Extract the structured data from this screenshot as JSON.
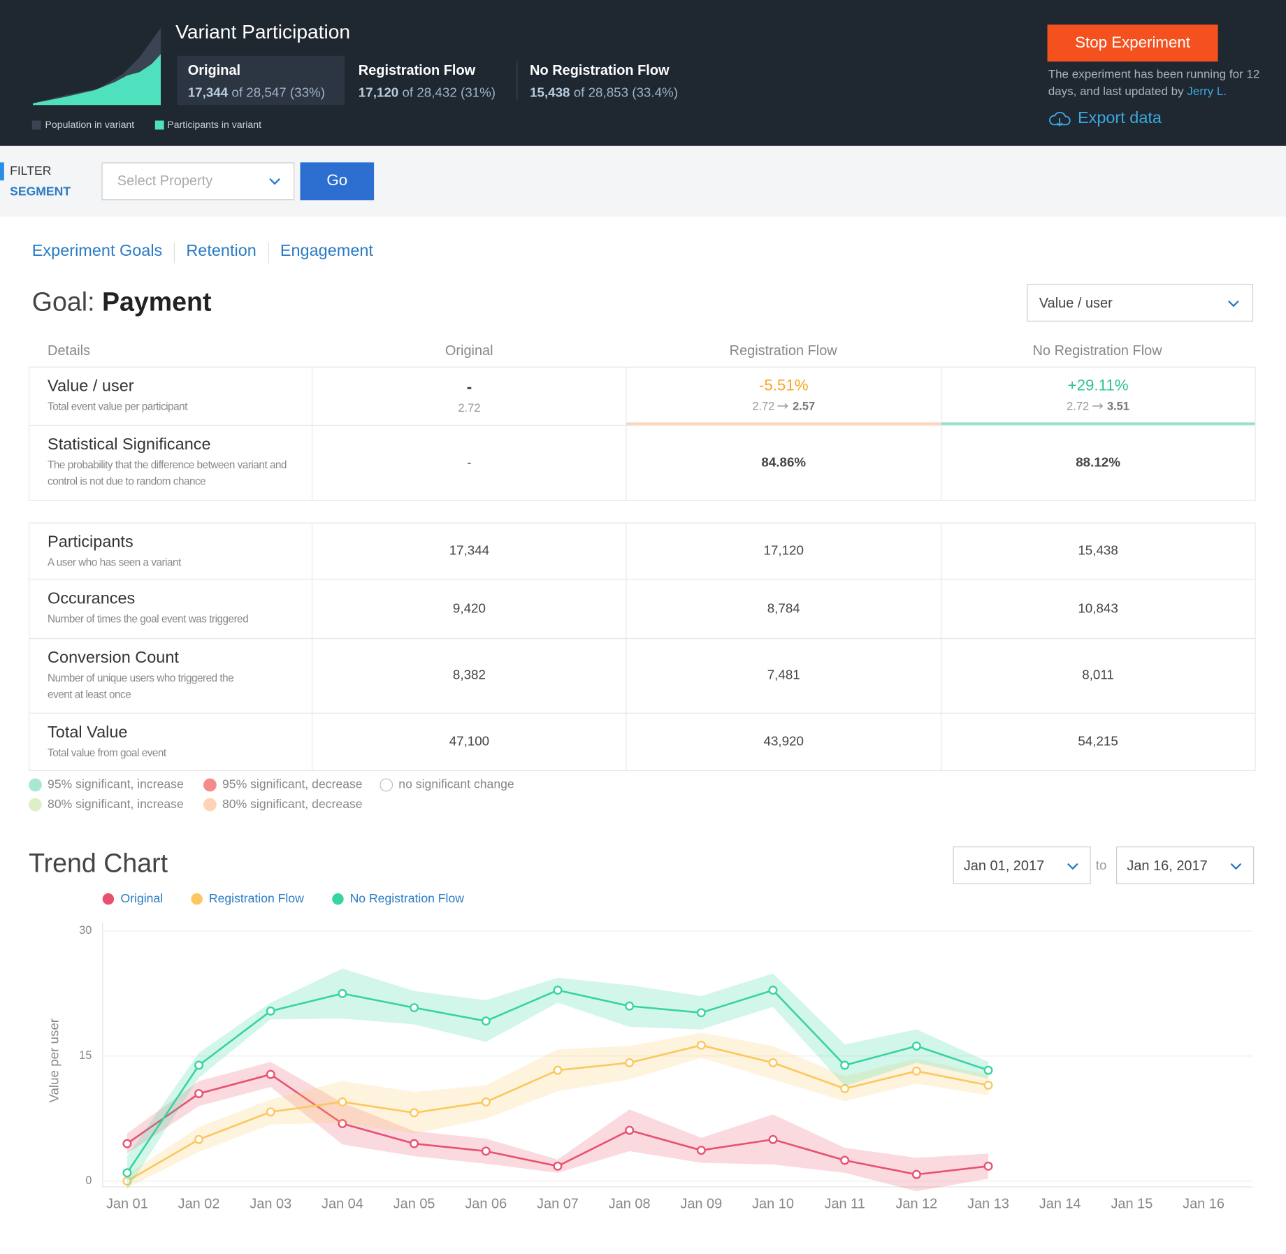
{
  "header": {
    "title": "Variant Participation",
    "variants": [
      {
        "name": "Original",
        "count": "17,344",
        "detail": "of 28,547 (33%)"
      },
      {
        "name": "Registration Flow",
        "count": "17,120",
        "detail": "of 28,432 (31%)"
      },
      {
        "name": "No Registration Flow",
        "count": "15,438",
        "detail": "of 28,853 (33.4%)"
      }
    ],
    "legend": [
      "Population in variant",
      "Participants in variant"
    ],
    "stop_button": "Stop Experiment",
    "status": "The experiment has been running for 12 days, and last updated by",
    "updated_by": "Jerry L.",
    "export": "Export data"
  },
  "filter": {
    "label": "FILTER",
    "segment": "SEGMENT",
    "placeholder": "Select Property",
    "button": "Go"
  },
  "tabs": [
    "Experiment Goals",
    "Retention",
    "Engagement"
  ],
  "goal": {
    "label": "Goal:",
    "name": "Payment",
    "metric": "Value / user"
  },
  "table": {
    "columns": [
      "Details",
      "Original",
      "Registration Flow",
      "No Registration Flow"
    ],
    "summary": [
      {
        "title": "Value / user",
        "desc": "Total event value per participant",
        "cells": [
          {
            "main": "-",
            "sub": "2.72"
          },
          {
            "main": "-5.51%",
            "from": "2.72",
            "to": "2.57"
          },
          {
            "main": "+29.11%",
            "from": "2.72",
            "to": "3.51"
          }
        ]
      },
      {
        "title": "Statistical Significance",
        "desc": "The probability that the difference between variant and control is not due to random chance",
        "cells": [
          "-",
          "84.86%",
          "88.12%"
        ]
      }
    ],
    "rows": [
      {
        "title": "Participants",
        "desc": "A user who has seen a variant",
        "cells": [
          "17,344",
          "17,120",
          "15,438"
        ]
      },
      {
        "title": "Occurances",
        "desc": "Number of times the goal event was triggered",
        "cells": [
          "9,420",
          "8,784",
          "10,843"
        ]
      },
      {
        "title": "Conversion Count",
        "desc": "Number of unique users who triggered the event at least once",
        "cells": [
          "8,382",
          "7,481",
          "8,011"
        ]
      },
      {
        "title": "Total Value",
        "desc": "Total value from goal event",
        "cells": [
          "47,100",
          "43,920",
          "54,215"
        ]
      }
    ]
  },
  "significance_legend": [
    {
      "label": "95% significant, increase",
      "color": "#a8e8d2"
    },
    {
      "label": "95% significant, decrease",
      "color": "#f58c8c"
    },
    {
      "label": "no significant change",
      "color": "#ffffff"
    },
    {
      "label": "80% significant, increase",
      "color": "#dcefc8"
    },
    {
      "label": "80% significant, decrease",
      "color": "#fdd4b6"
    }
  ],
  "trend_chart": {
    "type": "line",
    "title": "Trend Chart",
    "date_from": "Jan 01, 2017",
    "date_to_label": "to",
    "date_to": "Jan 16, 2017",
    "y_label": "Value per user",
    "categories": [
      "Jan 01",
      "Jan 02",
      "Jan 03",
      "Jan 04",
      "Jan 05",
      "Jan 06",
      "Jan 07",
      "Jan 08",
      "Jan 09",
      "Jan 10",
      "Jan 11",
      "Jan 12",
      "Jan 13",
      "Jan 14",
      "Jan 15",
      "Jan 16"
    ],
    "series": [
      {
        "name": "Original",
        "color": "#e8506f",
        "values": [
          4.5,
          10.5,
          12.8,
          6.9,
          4.5,
          3.6,
          1.8,
          6.1,
          3.7,
          5.0,
          2.5,
          0.8,
          1.8,
          null,
          null,
          null
        ],
        "errors": [
          1.2,
          1.5,
          1.5,
          2.5,
          1.5,
          1.5,
          0.8,
          2.5,
          1.5,
          3,
          1.5,
          2,
          1.5,
          null,
          null,
          null
        ]
      },
      {
        "name": "Registration Flow",
        "color": "#fbc75e",
        "values": [
          0,
          5.0,
          8.3,
          9.5,
          8.2,
          9.5,
          13.3,
          14.2,
          16.3,
          14.2,
          11.1,
          13.2,
          11.5,
          null,
          null,
          null
        ],
        "errors": [
          0.8,
          1.5,
          1.5,
          2.5,
          2.5,
          2,
          2.5,
          2,
          1.5,
          2,
          1.5,
          1.5,
          1.2,
          null,
          null,
          null
        ]
      },
      {
        "name": "No Registration Flow",
        "color": "#36d49f",
        "values": [
          1.0,
          13.9,
          20.4,
          22.5,
          20.8,
          19.2,
          22.9,
          21.0,
          20.2,
          22.9,
          13.9,
          16.2,
          13.3,
          null,
          null,
          null
        ],
        "errors": [
          2,
          1.5,
          1,
          3,
          2,
          2.5,
          1.5,
          2.5,
          2,
          2,
          2.5,
          2,
          1,
          null,
          null,
          null
        ]
      }
    ],
    "ylim": [
      0,
      30
    ],
    "yticks": [
      0,
      15,
      30
    ],
    "grid": true
  }
}
